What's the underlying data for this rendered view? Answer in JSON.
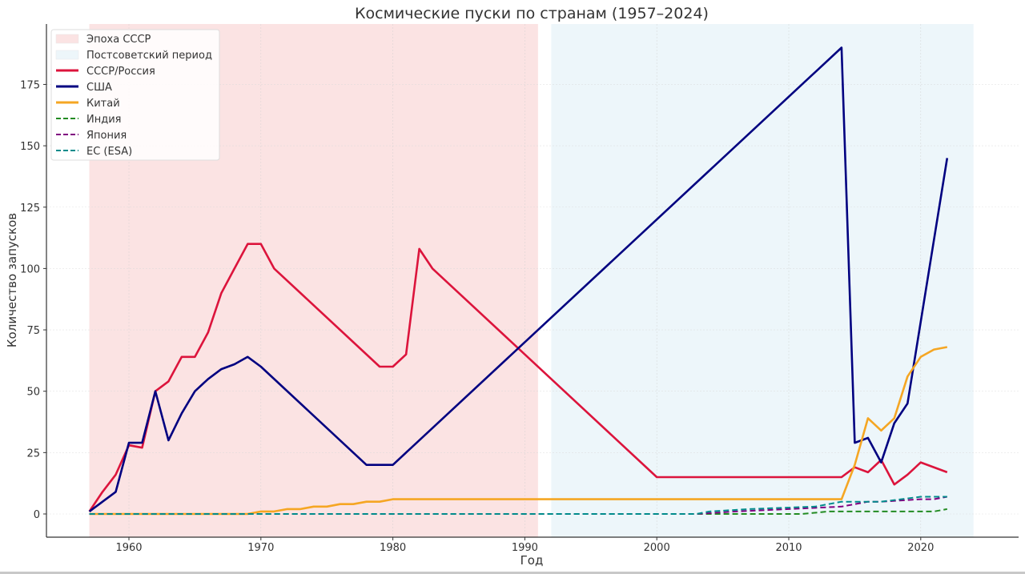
{
  "chart_data": {
    "type": "line",
    "title": "Космические пуски по странам (1957–2024)",
    "xlabel": "Год",
    "ylabel": "Количество запусков",
    "xlim": [
      1954.5,
      2027.5
    ],
    "ylim": [
      -9.5,
      200
    ],
    "xticks": [
      1960,
      1970,
      1980,
      1990,
      2000,
      2010,
      2020
    ],
    "yticks": [
      0,
      25,
      50,
      75,
      100,
      125,
      150,
      175
    ],
    "grid": true,
    "legend_position": "upper left",
    "spans": [
      {
        "label": "Эпоха СССР",
        "from": 1957,
        "to": 1991,
        "color": "#f6c8c8"
      },
      {
        "label": "Постсоветский период",
        "from": 1992,
        "to": 2024,
        "color": "#dcedf5"
      }
    ],
    "series": [
      {
        "name": "СССР/Россия",
        "color": "#dc143c",
        "style": "solid",
        "points": [
          [
            1957,
            1
          ],
          [
            1958,
            9
          ],
          [
            1959,
            16
          ],
          [
            1960,
            28
          ],
          [
            1961,
            27
          ],
          [
            1962,
            50
          ],
          [
            1963,
            54
          ],
          [
            1964,
            64
          ],
          [
            1965,
            64
          ],
          [
            1966,
            74
          ],
          [
            1967,
            90
          ],
          [
            1968,
            100
          ],
          [
            1969,
            110
          ],
          [
            1970,
            110
          ],
          [
            1971,
            100
          ],
          [
            1979,
            60
          ],
          [
            1980,
            60
          ],
          [
            1981,
            65
          ],
          [
            1982,
            108
          ],
          [
            1983,
            100
          ],
          [
            2000,
            15
          ],
          [
            2014,
            15
          ],
          [
            2015,
            19
          ],
          [
            2016,
            17
          ],
          [
            2017,
            22
          ],
          [
            2018,
            12
          ],
          [
            2019,
            16
          ],
          [
            2020,
            21
          ],
          [
            2022,
            17
          ]
        ]
      },
      {
        "name": "США",
        "color": "#000080",
        "style": "solid",
        "points": [
          [
            1957,
            1
          ],
          [
            1958,
            5
          ],
          [
            1959,
            9
          ],
          [
            1960,
            29
          ],
          [
            1961,
            29
          ],
          [
            1962,
            50
          ],
          [
            1963,
            30
          ],
          [
            1964,
            41
          ],
          [
            1965,
            50
          ],
          [
            1966,
            55
          ],
          [
            1967,
            59
          ],
          [
            1968,
            61
          ],
          [
            1969,
            64
          ],
          [
            1970,
            60
          ],
          [
            1978,
            20
          ],
          [
            1980,
            20
          ],
          [
            2014,
            190
          ],
          [
            2015,
            29
          ],
          [
            2016,
            31
          ],
          [
            2017,
            21
          ],
          [
            2018,
            37
          ],
          [
            2019,
            45
          ],
          [
            2022,
            145
          ]
        ]
      },
      {
        "name": "Китай",
        "color": "#f5a623",
        "style": "solid",
        "points": [
          [
            1957,
            0
          ],
          [
            1969,
            0
          ],
          [
            1970,
            1
          ],
          [
            1971,
            1
          ],
          [
            1972,
            2
          ],
          [
            1973,
            2
          ],
          [
            1974,
            3
          ],
          [
            1975,
            3
          ],
          [
            1976,
            4
          ],
          [
            1977,
            4
          ],
          [
            1978,
            5
          ],
          [
            1979,
            5
          ],
          [
            1980,
            6
          ],
          [
            2014,
            6
          ],
          [
            2015,
            20
          ],
          [
            2016,
            39
          ],
          [
            2017,
            34
          ],
          [
            2018,
            39
          ],
          [
            2019,
            56
          ],
          [
            2020,
            64
          ],
          [
            2021,
            67
          ],
          [
            2022,
            68
          ]
        ]
      },
      {
        "name": "Индия",
        "color": "#228b22",
        "style": "dashed",
        "points": [
          [
            1957,
            0
          ],
          [
            2011,
            0
          ],
          [
            2013,
            1
          ],
          [
            2021,
            1
          ],
          [
            2022,
            2
          ]
        ]
      },
      {
        "name": "Япония",
        "color": "#800080",
        "style": "dashed",
        "points": [
          [
            1957,
            0
          ],
          [
            2003,
            0
          ],
          [
            2006,
            1
          ],
          [
            2010,
            2
          ],
          [
            2014,
            3
          ],
          [
            2016,
            5
          ],
          [
            2017,
            5
          ],
          [
            2020,
            6
          ],
          [
            2021,
            6
          ],
          [
            2022,
            7
          ]
        ]
      },
      {
        "name": "ЕС (ESA)",
        "color": "#008b8b",
        "style": "dashed",
        "points": [
          [
            1957,
            0
          ],
          [
            2003,
            0
          ],
          [
            2004,
            1
          ],
          [
            2007,
            2
          ],
          [
            2012,
            3
          ],
          [
            2014,
            5
          ],
          [
            2017,
            5
          ],
          [
            2020,
            7
          ],
          [
            2022,
            7
          ]
        ]
      }
    ]
  }
}
